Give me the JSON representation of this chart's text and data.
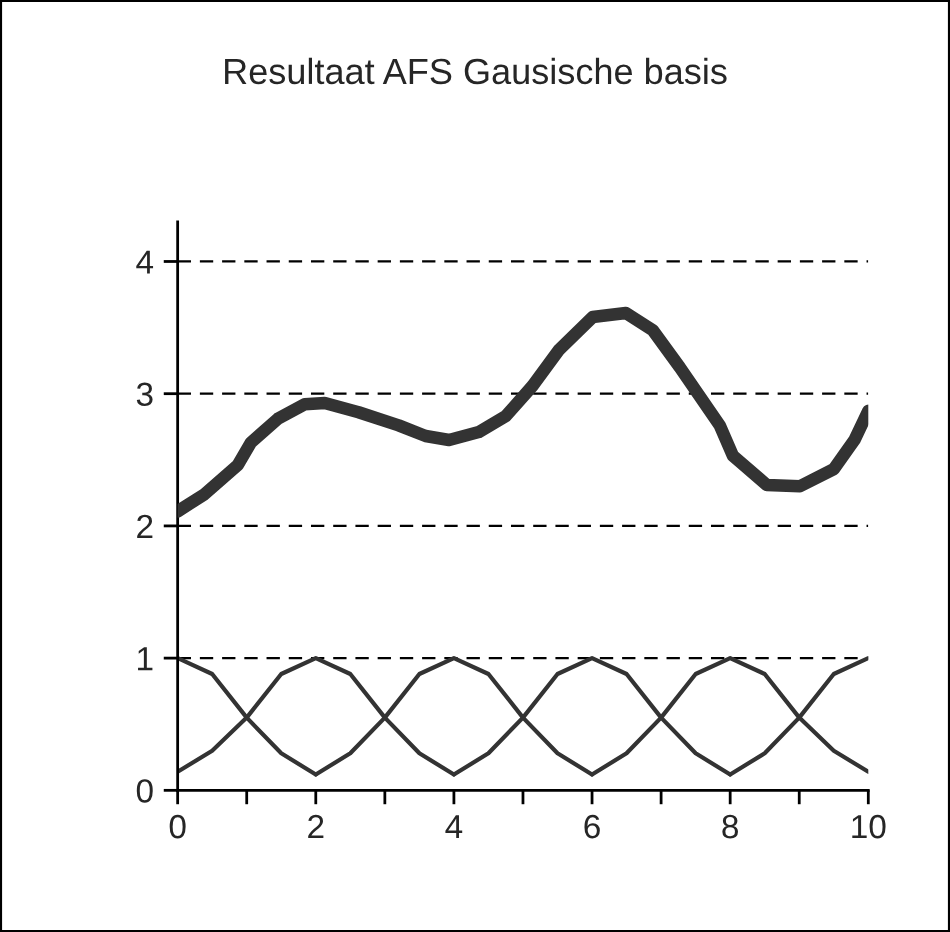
{
  "chart_data": {
    "type": "line",
    "title": "Resultaat AFS Gausische basis",
    "xlim": [
      0,
      10
    ],
    "ylim": [
      0,
      4.3
    ],
    "xticks": [
      0,
      {
        "value": 1,
        "label": null
      },
      2,
      {
        "value": 3,
        "label": null
      },
      4,
      {
        "value": 5,
        "label": null
      },
      6,
      {
        "value": 7,
        "label": null
      },
      8,
      {
        "value": 9,
        "label": null
      },
      10
    ],
    "yticks": [
      0,
      1,
      2,
      3,
      4
    ],
    "grid": "y",
    "legend": false,
    "marker": "none",
    "line_style": "solid",
    "series": [
      {
        "color": "#333333",
        "x": [
          0,
          0.39,
          0.87,
          1.06,
          1.45,
          1.84,
          2.13,
          2.62,
          3.2,
          3.59,
          3.93,
          4.36,
          4.75,
          5.14,
          5.52,
          6.01,
          6.49,
          6.88,
          7.27,
          7.85,
          8.04,
          8.53,
          9.01,
          9.5,
          9.8,
          10
        ],
        "values": [
          2.11,
          2.24,
          2.46,
          2.63,
          2.81,
          2.92,
          2.93,
          2.86,
          2.76,
          2.68,
          2.65,
          2.71,
          2.83,
          3.06,
          3.33,
          3.58,
          3.61,
          3.48,
          3.2,
          2.76,
          2.53,
          2.31,
          2.3,
          2.43,
          2.65,
          2.87
        ]
      },
      {
        "color": "#333333",
        "x": [
          0,
          0.5,
          1,
          1.5,
          2
        ],
        "values": [
          1,
          0.88,
          0.55,
          0.28,
          0.12
        ]
      },
      {
        "color": "#333333",
        "x": [
          0,
          0.5,
          1,
          1.5,
          2,
          2.5,
          3,
          3.5,
          4
        ],
        "values": [
          0.14,
          0.3,
          0.55,
          0.88,
          1,
          0.88,
          0.55,
          0.28,
          0.12
        ]
      },
      {
        "color": "#333333",
        "x": [
          2,
          2.5,
          3,
          3.5,
          4,
          4.5,
          5,
          5.5,
          6
        ],
        "values": [
          0.12,
          0.28,
          0.55,
          0.88,
          1,
          0.88,
          0.55,
          0.28,
          0.12
        ]
      },
      {
        "color": "#333333",
        "x": [
          4,
          4.5,
          5,
          5.5,
          6,
          6.5,
          7,
          7.5,
          8
        ],
        "values": [
          0.12,
          0.28,
          0.55,
          0.88,
          1,
          0.88,
          0.55,
          0.28,
          0.12
        ]
      },
      {
        "color": "#333333",
        "x": [
          6,
          6.5,
          7,
          7.5,
          8,
          8.5,
          9,
          9.5,
          10
        ],
        "values": [
          0.12,
          0.28,
          0.55,
          0.88,
          1,
          0.88,
          0.55,
          0.3,
          0.14
        ]
      },
      {
        "color": "#333333",
        "x": [
          8,
          8.5,
          9,
          9.5,
          10
        ],
        "values": [
          0.12,
          0.28,
          0.55,
          0.88,
          1
        ]
      }
    ]
  }
}
